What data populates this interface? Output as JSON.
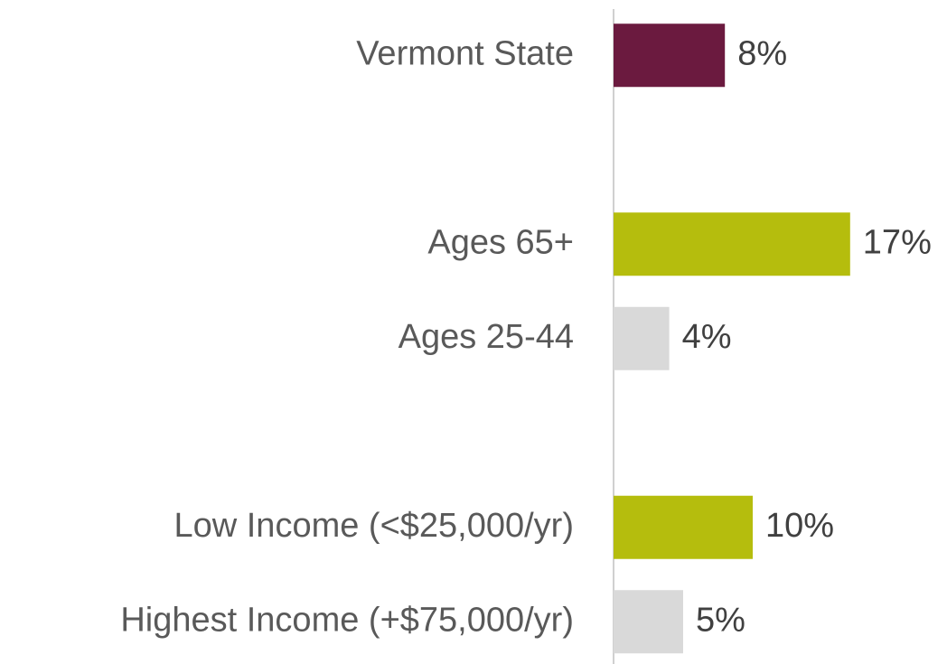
{
  "chart_data": {
    "type": "hbar",
    "categories": [
      "Vermont State",
      null,
      "Ages 65+",
      "Ages 25-44",
      null,
      "Low Income (<$25,000/yr)",
      "Highest Income (+$75,000/yr)"
    ],
    "values": [
      8,
      null,
      17,
      4,
      null,
      10,
      5
    ],
    "value_labels": [
      "8%",
      null,
      "17%",
      "4%",
      null,
      "10%",
      "5%"
    ],
    "colors": [
      "#6b1a3f",
      null,
      "#b5bd0d",
      "#d9d9d9",
      null,
      "#b5bd0d",
      "#d9d9d9"
    ]
  }
}
